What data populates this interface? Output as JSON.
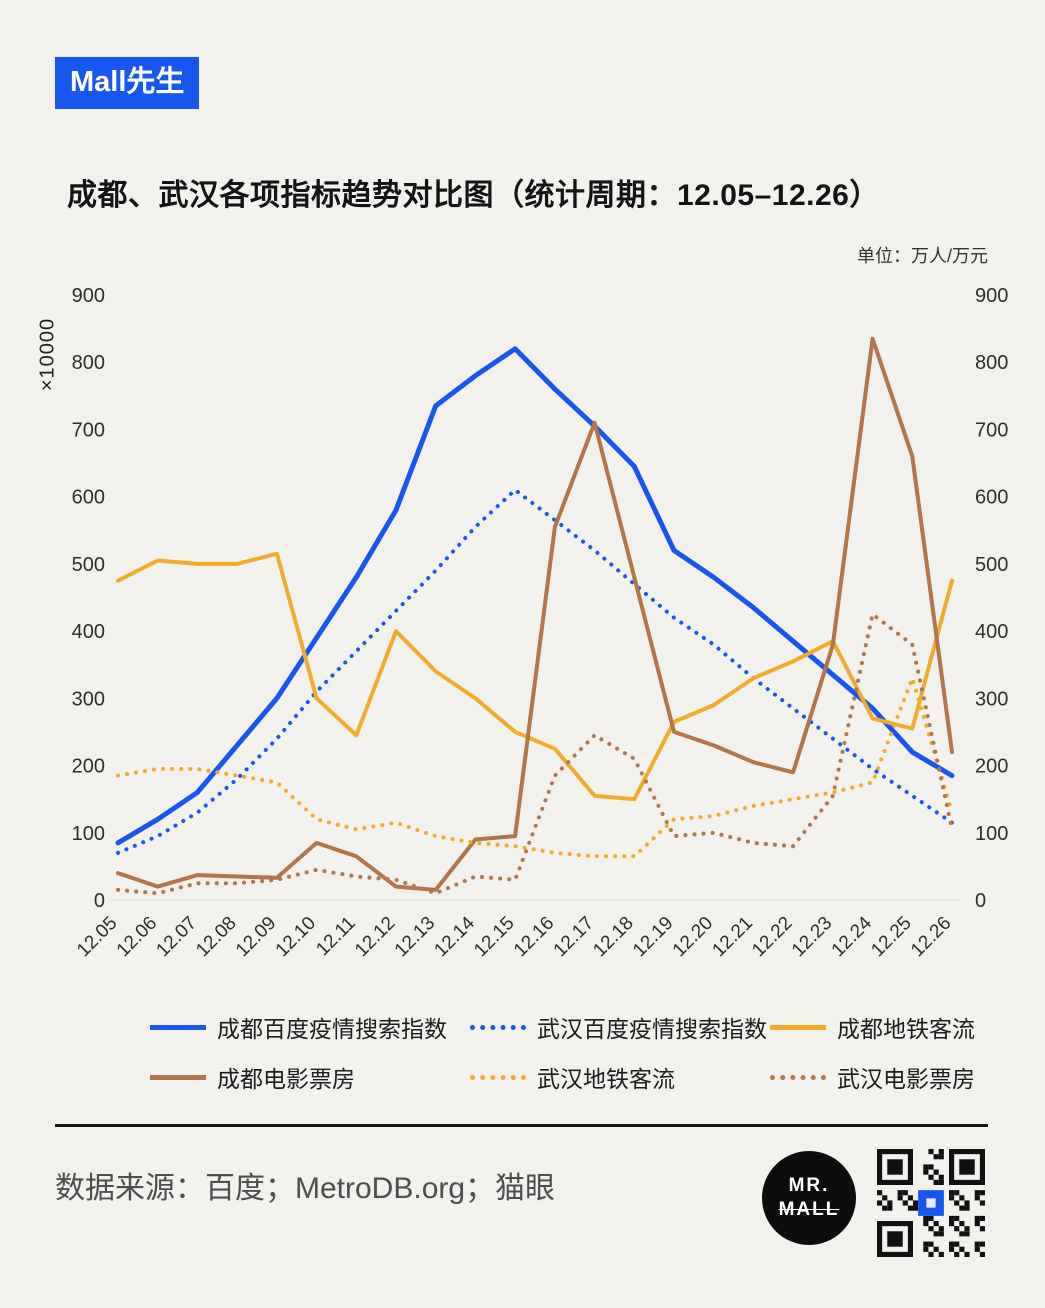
{
  "badge": {
    "label": "Mall先生"
  },
  "title": "成都、武汉各项指标趋势对比图（统计周期：12.05–12.26）",
  "unit_note": "单位：万人/万元",
  "axis_multiplier": "×10000",
  "colors": {
    "blue": "#1757f0",
    "orange": "#f2ac2c",
    "brown": "#b3754a",
    "background": "#f2f1ee"
  },
  "chart_data": {
    "type": "line",
    "title": "成都、武汉各项指标趋势对比图（统计周期：12.05–12.26）",
    "xlabel": "",
    "ylabel": "×10000",
    "unit": "单位：万人/万元",
    "ylim": [
      0,
      900
    ],
    "ytick_step": 100,
    "grid": false,
    "legend_position": "bottom",
    "categories": [
      "12.05",
      "12.06",
      "12.07",
      "12.08",
      "12.09",
      "12.10",
      "12.11",
      "12.12",
      "12.13",
      "12.14",
      "12.15",
      "12.16",
      "12.17",
      "12.18",
      "12.19",
      "12.20",
      "12.21",
      "12.22",
      "12.23",
      "12.24",
      "12.25",
      "12.26"
    ],
    "series": [
      {
        "name": "成都百度疫情搜索指数",
        "color": "#1757f0",
        "style": "solid",
        "width": 5,
        "values": [
          85,
          120,
          160,
          230,
          300,
          390,
          480,
          580,
          735,
          780,
          820,
          760,
          705,
          645,
          520,
          480,
          435,
          385,
          335,
          285,
          220,
          185
        ]
      },
      {
        "name": "武汉百度疫情搜索指数",
        "color": "#1757f0",
        "style": "dotted",
        "width": 4,
        "values": [
          70,
          95,
          130,
          180,
          240,
          310,
          370,
          430,
          490,
          555,
          610,
          565,
          520,
          470,
          420,
          380,
          330,
          285,
          240,
          195,
          155,
          115
        ]
      },
      {
        "name": "成都地铁客流",
        "color": "#f2ac2c",
        "style": "solid",
        "width": 4,
        "values": [
          475,
          505,
          500,
          500,
          515,
          300,
          245,
          400,
          340,
          300,
          250,
          225,
          155,
          150,
          265,
          290,
          330,
          355,
          385,
          270,
          255,
          475
        ]
      },
      {
        "name": "成都电影票房",
        "color": "#b3754a",
        "style": "solid",
        "width": 4,
        "values": [
          40,
          20,
          37,
          35,
          33,
          85,
          65,
          20,
          15,
          90,
          95,
          555,
          710,
          480,
          250,
          230,
          205,
          190,
          380,
          835,
          660,
          220
        ]
      },
      {
        "name": "武汉地铁客流",
        "color": "#f2ac2c",
        "style": "dotted",
        "width": 4,
        "values": [
          185,
          195,
          195,
          185,
          175,
          120,
          105,
          115,
          95,
          85,
          80,
          70,
          65,
          65,
          120,
          125,
          140,
          150,
          160,
          175,
          330,
          130
        ]
      },
      {
        "name": "武汉电影票房",
        "color": "#b3754a",
        "style": "dotted",
        "width": 4,
        "values": [
          15,
          10,
          25,
          25,
          30,
          45,
          35,
          30,
          10,
          35,
          30,
          185,
          245,
          210,
          95,
          100,
          85,
          80,
          155,
          425,
          380,
          105
        ]
      }
    ]
  },
  "footer": {
    "source": "数据来源：百度；MetroDB.org；猫眼",
    "logo_line1": "MR.",
    "logo_line2": "MALL"
  }
}
